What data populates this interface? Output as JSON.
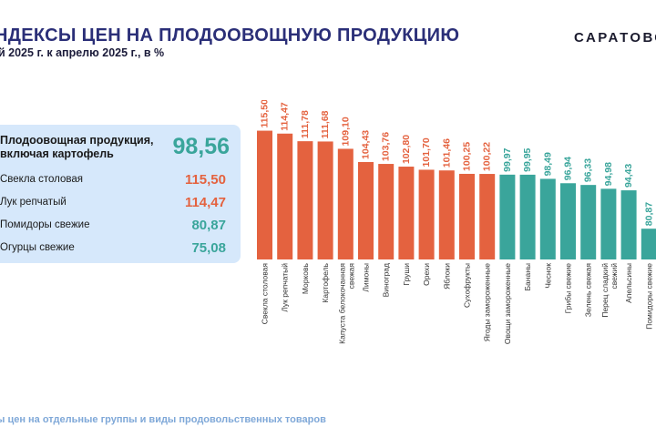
{
  "header": {
    "title": "НДЕКСЫ ЦЕН НА ПЛОДООВОЩНУЮ ПРОДУКЦИЮ",
    "subtitle": "й 2025 г. к апрелю 2025 г., в %",
    "brand": "САРАТОВС"
  },
  "summary": {
    "main_label": "Плодоовощная продукция, включая картофель",
    "main_value": "98,56",
    "rows": [
      {
        "label": "Свекла столовая",
        "value": "115,50",
        "color": "#e4623f"
      },
      {
        "label": "Лук репчатый",
        "value": "114,47",
        "color": "#e4623f"
      },
      {
        "label": "Помидоры свежие",
        "value": "80,87",
        "color": "#3aa59b"
      },
      {
        "label": "Огурцы свежие",
        "value": "75,08",
        "color": "#3aa59b"
      }
    ]
  },
  "footer": {
    "text": "ы цен на отдельные группы и виды продовольственных товаров"
  },
  "colors": {
    "above_100": "#e4623f",
    "below_100": "#3aa59b",
    "title": "#2b2f78",
    "panel_bg": "#d6e8fb",
    "footer_text": "#7fa8d8"
  },
  "chart_data": {
    "type": "bar",
    "title": "",
    "xlabel": "",
    "ylabel": "",
    "grid": false,
    "legend": "none",
    "categories": [
      "Свекла столовая",
      "Лук репчатый",
      "Морковь",
      "Картофель",
      "Капуста белокочанная свежая",
      "Лимоны",
      "Виноград",
      "Груши",
      "Орехи",
      "Яблоки",
      "Сухофрукты",
      "Ягоды замороженные",
      "Овощи замороженные",
      "Бананы",
      "Чеснок",
      "Грибы свежие",
      "Зелень свежая",
      "Перец сладкий свежий",
      "Апельсины",
      "Помидоры свежие"
    ],
    "values": [
      115.5,
      114.47,
      111.78,
      111.68,
      109.1,
      104.43,
      103.76,
      102.8,
      101.7,
      101.46,
      100.25,
      100.22,
      99.97,
      99.95,
      98.49,
      96.94,
      96.33,
      94.98,
      94.43,
      80.87
    ],
    "value_labels": [
      "115,50",
      "114,47",
      "111,78",
      "111,68",
      "109,10",
      "104,43",
      "103,76",
      "102,80",
      "101,70",
      "101,46",
      "100,25",
      "100,22",
      "99,97",
      "99,95",
      "98,49",
      "96,94",
      "96,33",
      "94,98",
      "94,43",
      "80,87"
    ],
    "ylim": [
      70,
      116
    ]
  }
}
